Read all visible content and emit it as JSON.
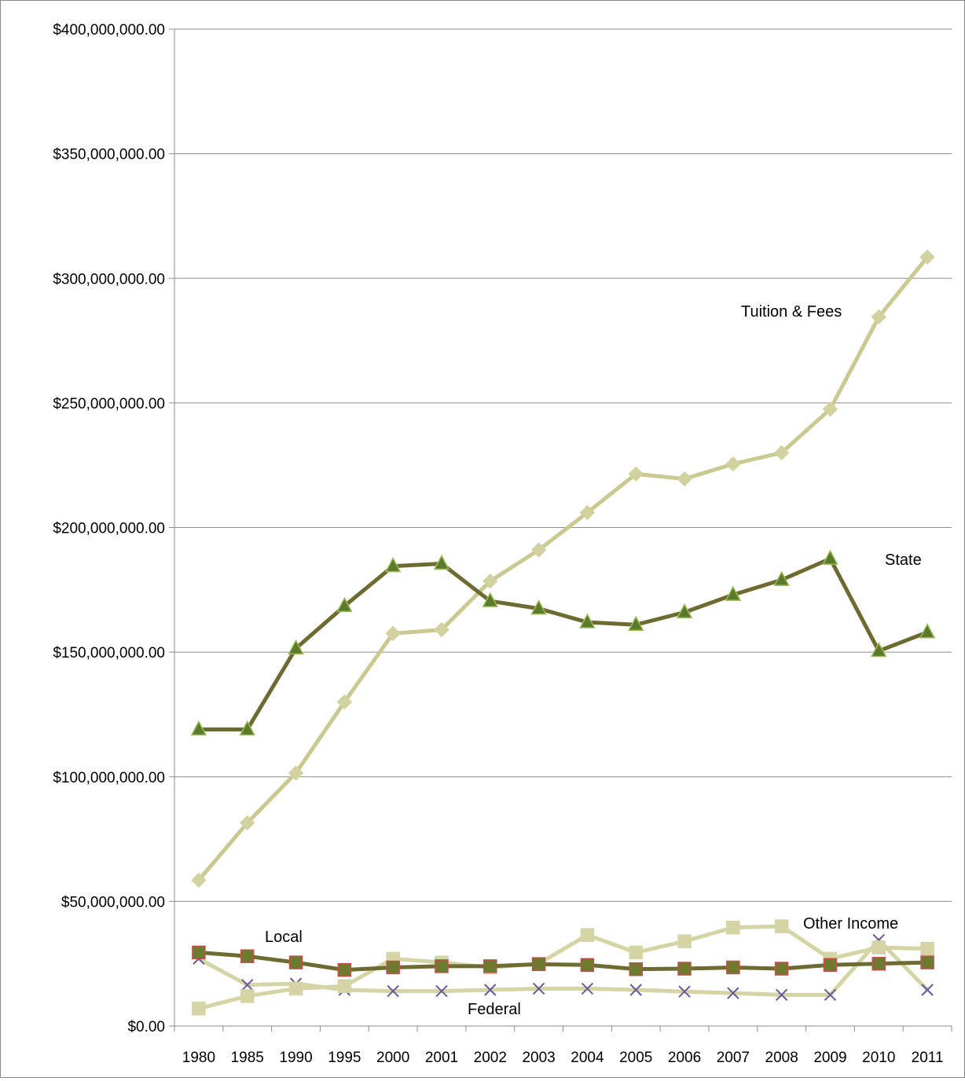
{
  "chart_data": {
    "type": "line",
    "title": "",
    "xlabel": "",
    "ylabel": "",
    "categories": [
      "1980",
      "1985",
      "1990",
      "1995",
      "2000",
      "2001",
      "2002",
      "2003",
      "2004",
      "2005",
      "2006",
      "2007",
      "2008",
      "2009",
      "2010",
      "2011"
    ],
    "ylim": [
      0,
      400000000
    ],
    "y_ticks": [
      0,
      50000000,
      100000000,
      150000000,
      200000000,
      250000000,
      300000000,
      350000000,
      400000000
    ],
    "y_tick_labels": [
      "$0.00",
      "$50,000,000.00",
      "$100,000,000.00",
      "$150,000,000.00",
      "$200,000,000.00",
      "$250,000,000.00",
      "$300,000,000.00",
      "$350,000,000.00",
      "$400,000,000.00"
    ],
    "grid": "horizontal",
    "legend": "none",
    "series": [
      {
        "name": "Tuition & Fees",
        "marker": "diamond",
        "line_color": "#c9c991",
        "marker_color": "#d2d2a0",
        "values": [
          58500000,
          81500000,
          101500000,
          130000000,
          157500000,
          159000000,
          178500000,
          191000000,
          206000000,
          221500000,
          219500000,
          225500000,
          230000000,
          247500000,
          284500000,
          308500000
        ]
      },
      {
        "name": "State",
        "marker": "triangle",
        "line_color": "#6e6b32",
        "marker_color": "#5b7a2a",
        "values": [
          119000000,
          119000000,
          151500000,
          168500000,
          184500000,
          185500000,
          170500000,
          167500000,
          162000000,
          161000000,
          166000000,
          173000000,
          179000000,
          187500000,
          150500000,
          158000000
        ]
      },
      {
        "name": "Local",
        "marker": "square",
        "line_color": "#6e6b32",
        "marker_color": "#6e7a2e",
        "values": [
          29500000,
          28000000,
          25500000,
          22500000,
          23500000,
          24000000,
          24000000,
          24800000,
          24500000,
          22800000,
          23000000,
          23500000,
          23000000,
          24500000,
          25000000,
          25500000
        ]
      },
      {
        "name": "Other Income",
        "marker": "square",
        "line_color": "#d4d4a4",
        "marker_color": "#d4d4a4",
        "values": [
          7000000,
          12000000,
          15000000,
          16000000,
          27000000,
          25500000,
          23500000,
          25000000,
          36500000,
          29500000,
          34000000,
          39500000,
          40000000,
          27000000,
          31500000,
          31000000
        ]
      },
      {
        "name": "Federal",
        "marker": "x",
        "line_color": "#d4d4a4",
        "marker_color": "#6a5a9c",
        "values": [
          27000000,
          16500000,
          17000000,
          14500000,
          14000000,
          14000000,
          14500000,
          15000000,
          15000000,
          14500000,
          13800000,
          13200000,
          12500000,
          12500000,
          34500000,
          14500000
        ]
      }
    ],
    "annotations": {
      "tuition": "Tuition & Fees",
      "state": "State",
      "local": "Local",
      "other": "Other Income",
      "federal": "Federal"
    }
  }
}
